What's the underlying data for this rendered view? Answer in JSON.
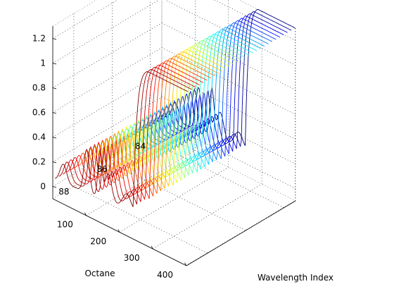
{
  "chart_data": {
    "type": "line",
    "subtype": "waterfall-3d",
    "title": "",
    "xlabel": "Wavelength Index",
    "ylabel": "Octane",
    "zlabel": "",
    "xlim": [
      0,
      401
    ],
    "ylim": [
      83.4,
      89.1
    ],
    "zlim": [
      -0.1,
      1.3
    ],
    "x_ticks": [
      "100",
      "200",
      "300",
      "400"
    ],
    "y_ticks": [
      "84",
      "86",
      "88"
    ],
    "z_ticks": [
      "0",
      "0.2",
      "0.4",
      "0.6",
      "0.8",
      "1",
      "1.2"
    ],
    "grid": true,
    "colormap": "jet (colored by octane: blue = low, red = high)",
    "spectrum_model": {
      "baseline_start": 0.05,
      "baseline_end": 0.15,
      "peaks": [
        {
          "center": 40,
          "width": 10,
          "height": 0.15
        },
        {
          "center": 110,
          "width": 8,
          "height": 0.35
        },
        {
          "center": 150,
          "width": 6,
          "height": 0.38
        },
        {
          "center": 175,
          "width": 10,
          "height": 0.22
        },
        {
          "center": 230,
          "width": 12,
          "height": 0.12
        }
      ],
      "rise": {
        "start": 250,
        "end": 400,
        "plateau": 1.2
      },
      "octane_shift_per_unit": 2.5
    },
    "samples": [
      {
        "octane": 83.4
      },
      {
        "octane": 83.6
      },
      {
        "octane": 83.8
      },
      {
        "octane": 84.0
      },
      {
        "octane": 84.2
      },
      {
        "octane": 84.4
      },
      {
        "octane": 84.6
      },
      {
        "octane": 84.8
      },
      {
        "octane": 85.0
      },
      {
        "octane": 85.2
      },
      {
        "octane": 85.4
      },
      {
        "octane": 85.6
      },
      {
        "octane": 85.8
      },
      {
        "octane": 86.0
      },
      {
        "octane": 86.2
      },
      {
        "octane": 86.4
      },
      {
        "octane": 86.6
      },
      {
        "octane": 86.8
      },
      {
        "octane": 87.0
      },
      {
        "octane": 87.2
      },
      {
        "octane": 87.4
      },
      {
        "octane": 87.6
      },
      {
        "octane": 87.8
      },
      {
        "octane": 88.0
      },
      {
        "octane": 88.2
      },
      {
        "octane": 88.4
      },
      {
        "octane": 88.6
      },
      {
        "octane": 88.8
      },
      {
        "octane": 89.0
      }
    ]
  }
}
